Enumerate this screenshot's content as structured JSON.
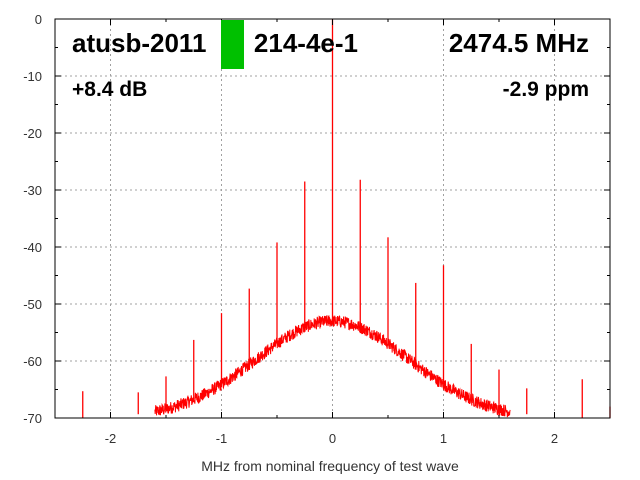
{
  "chart_data": {
    "type": "line",
    "xlabel": "MHz from nominal frequency of test wave",
    "ylabel": "",
    "xlim": [
      -2.5,
      2.5
    ],
    "ylim": [
      -70,
      0
    ],
    "x_ticks": [
      -2,
      -1,
      0,
      1,
      2
    ],
    "y_ticks": [
      0,
      -10,
      -20,
      -30,
      -40,
      -50,
      -60,
      -70
    ],
    "grid": true,
    "grid_style": "dotted",
    "series_color": "#ff0000",
    "marker_color": "#00c000",
    "annotations": {
      "device": "atusb-2011",
      "device_tail": "214-4e-1",
      "frequency": "2474.5 MHz",
      "level": "+8.4 dB",
      "offset": "-2.9 ppm"
    },
    "noise_hump": {
      "center_x": 0.0,
      "peak_dbm": -53,
      "floor_dbm": -70,
      "half_width_mhz": 1.1
    },
    "spurs": [
      {
        "x": 0.0,
        "y": 0
      },
      {
        "x": -0.25,
        "y": -28.5
      },
      {
        "x": 0.25,
        "y": -28.2
      },
      {
        "x": -0.5,
        "y": -39.2
      },
      {
        "x": 0.5,
        "y": -38.3
      },
      {
        "x": -0.75,
        "y": -47.3
      },
      {
        "x": 0.75,
        "y": -46.3
      },
      {
        "x": -1.0,
        "y": -51.6
      },
      {
        "x": 1.0,
        "y": -43.2
      },
      {
        "x": -1.25,
        "y": -56.3
      },
      {
        "x": 1.25,
        "y": -57.0
      },
      {
        "x": -1.5,
        "y": -62.7
      },
      {
        "x": 1.5,
        "y": -61.5
      },
      {
        "x": -1.75,
        "y": -65.5
      },
      {
        "x": 1.75,
        "y": -64.8
      },
      {
        "x": -2.25,
        "y": -65.3
      },
      {
        "x": 2.25,
        "y": -63.2
      },
      {
        "x": 2.5,
        "y": -68.0
      }
    ]
  }
}
